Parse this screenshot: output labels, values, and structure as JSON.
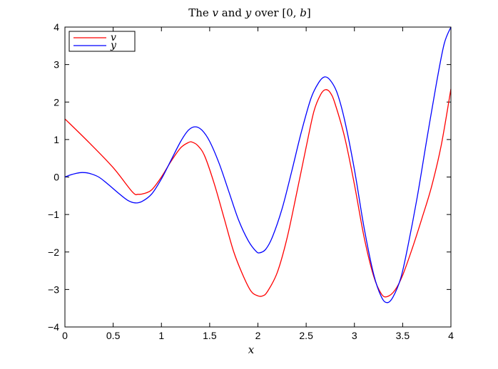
{
  "chart_data": {
    "type": "line",
    "title": {
      "prefix": "The ",
      "var1": "v",
      "mid": " and ",
      "var2": "y",
      "suffix1": " over [0, ",
      "var3": "b",
      "suffix2": "]"
    },
    "xlabel": "x",
    "ylabel": "",
    "xlim": [
      0,
      4
    ],
    "ylim": [
      -4,
      4
    ],
    "x_ticks": [
      0,
      0.5,
      1,
      1.5,
      2,
      2.5,
      3,
      3.5,
      4
    ],
    "x_tick_labels": [
      "0",
      "0.5",
      "1",
      "1.5",
      "2",
      "2.5",
      "3",
      "3.5",
      "4"
    ],
    "y_ticks": [
      -4,
      -3,
      -2,
      -1,
      0,
      1,
      2,
      3,
      4
    ],
    "y_tick_labels": [
      "−4",
      "−3",
      "−2",
      "−1",
      "0",
      "1",
      "2",
      "3",
      "4"
    ],
    "grid": false,
    "legend_position": "top-left",
    "series": [
      {
        "name": "v",
        "color": "#ff0000",
        "points": [
          [
            0,
            1.55
          ],
          [
            0.25,
            0.92
          ],
          [
            0.5,
            0.25
          ],
          [
            0.7,
            -0.4
          ],
          [
            0.76,
            -0.46
          ],
          [
            0.82,
            -0.44
          ],
          [
            0.9,
            -0.34
          ],
          [
            1.0,
            0.0
          ],
          [
            1.1,
            0.42
          ],
          [
            1.2,
            0.78
          ],
          [
            1.28,
            0.92
          ],
          [
            1.32,
            0.93
          ],
          [
            1.38,
            0.83
          ],
          [
            1.45,
            0.55
          ],
          [
            1.55,
            -0.2
          ],
          [
            1.65,
            -1.1
          ],
          [
            1.75,
            -2.0
          ],
          [
            1.85,
            -2.65
          ],
          [
            1.93,
            -3.05
          ],
          [
            2.0,
            -3.17
          ],
          [
            2.05,
            -3.17
          ],
          [
            2.1,
            -3.05
          ],
          [
            2.2,
            -2.55
          ],
          [
            2.3,
            -1.65
          ],
          [
            2.4,
            -0.45
          ],
          [
            2.5,
            0.8
          ],
          [
            2.58,
            1.75
          ],
          [
            2.65,
            2.2
          ],
          [
            2.7,
            2.33
          ],
          [
            2.75,
            2.25
          ],
          [
            2.8,
            1.95
          ],
          [
            2.9,
            1.05
          ],
          [
            3.0,
            -0.2
          ],
          [
            3.1,
            -1.6
          ],
          [
            3.2,
            -2.65
          ],
          [
            3.28,
            -3.12
          ],
          [
            3.34,
            -3.19
          ],
          [
            3.42,
            -3.02
          ],
          [
            3.5,
            -2.62
          ],
          [
            3.6,
            -1.9
          ],
          [
            3.7,
            -1.1
          ],
          [
            3.8,
            -0.25
          ],
          [
            3.9,
            0.85
          ],
          [
            4.0,
            2.35
          ]
        ]
      },
      {
        "name": "y",
        "color": "#0000ff",
        "points": [
          [
            0,
            0.0
          ],
          [
            0.05,
            0.05
          ],
          [
            0.12,
            0.1
          ],
          [
            0.18,
            0.12
          ],
          [
            0.25,
            0.1
          ],
          [
            0.35,
            0.0
          ],
          [
            0.45,
            -0.2
          ],
          [
            0.55,
            -0.42
          ],
          [
            0.65,
            -0.62
          ],
          [
            0.73,
            -0.69
          ],
          [
            0.8,
            -0.65
          ],
          [
            0.9,
            -0.45
          ],
          [
            1.0,
            -0.05
          ],
          [
            1.1,
            0.45
          ],
          [
            1.2,
            0.95
          ],
          [
            1.28,
            1.25
          ],
          [
            1.35,
            1.34
          ],
          [
            1.42,
            1.25
          ],
          [
            1.5,
            0.95
          ],
          [
            1.6,
            0.35
          ],
          [
            1.7,
            -0.4
          ],
          [
            1.8,
            -1.15
          ],
          [
            1.9,
            -1.7
          ],
          [
            1.98,
            -1.98
          ],
          [
            2.02,
            -2.02
          ],
          [
            2.08,
            -1.93
          ],
          [
            2.15,
            -1.6
          ],
          [
            2.25,
            -0.85
          ],
          [
            2.35,
            0.15
          ],
          [
            2.45,
            1.2
          ],
          [
            2.55,
            2.1
          ],
          [
            2.63,
            2.52
          ],
          [
            2.69,
            2.67
          ],
          [
            2.75,
            2.58
          ],
          [
            2.82,
            2.25
          ],
          [
            2.9,
            1.5
          ],
          [
            3.0,
            0.2
          ],
          [
            3.1,
            -1.35
          ],
          [
            3.2,
            -2.6
          ],
          [
            3.28,
            -3.2
          ],
          [
            3.34,
            -3.35
          ],
          [
            3.4,
            -3.2
          ],
          [
            3.48,
            -2.7
          ],
          [
            3.55,
            -1.9
          ],
          [
            3.65,
            -0.55
          ],
          [
            3.75,
            1.0
          ],
          [
            3.85,
            2.5
          ],
          [
            3.93,
            3.55
          ],
          [
            4.0,
            4.0
          ]
        ]
      }
    ]
  }
}
